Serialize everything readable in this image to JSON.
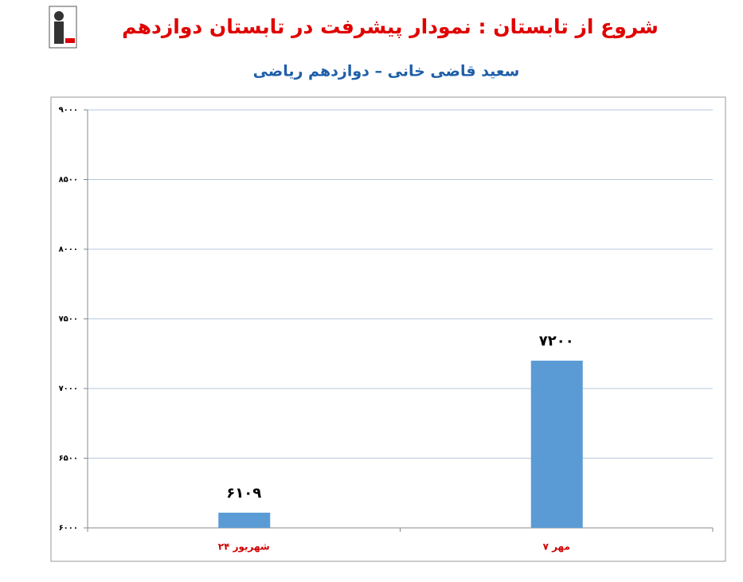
{
  "chart_data": {
    "type": "bar",
    "title": "شروع از تابستان : نمودار پیشرفت در تابستان دوازدهم",
    "subtitle": "سعید قاضی خانی – دوازدهم ریاضی",
    "categories": [
      "۲۴ شهریور",
      "۷ مهر"
    ],
    "values": [
      6109,
      7200
    ],
    "value_labels": [
      "۶۱۰۹",
      "۷۲۰۰"
    ],
    "color": "#5b9bd5",
    "ylim": [
      6000,
      9000
    ],
    "yticks": [
      {
        "value": 6000,
        "label": "۶۰۰۰"
      },
      {
        "value": 6500,
        "label": "۶۵۰۰"
      },
      {
        "value": 7000,
        "label": "۷۰۰۰"
      },
      {
        "value": 7500,
        "label": "۷۵۰۰"
      },
      {
        "value": 8000,
        "label": "۸۰۰۰"
      },
      {
        "value": 8500,
        "label": "۸۵۰۰"
      },
      {
        "value": 9000,
        "label": "۹۰۰۰"
      }
    ],
    "grid": true
  }
}
